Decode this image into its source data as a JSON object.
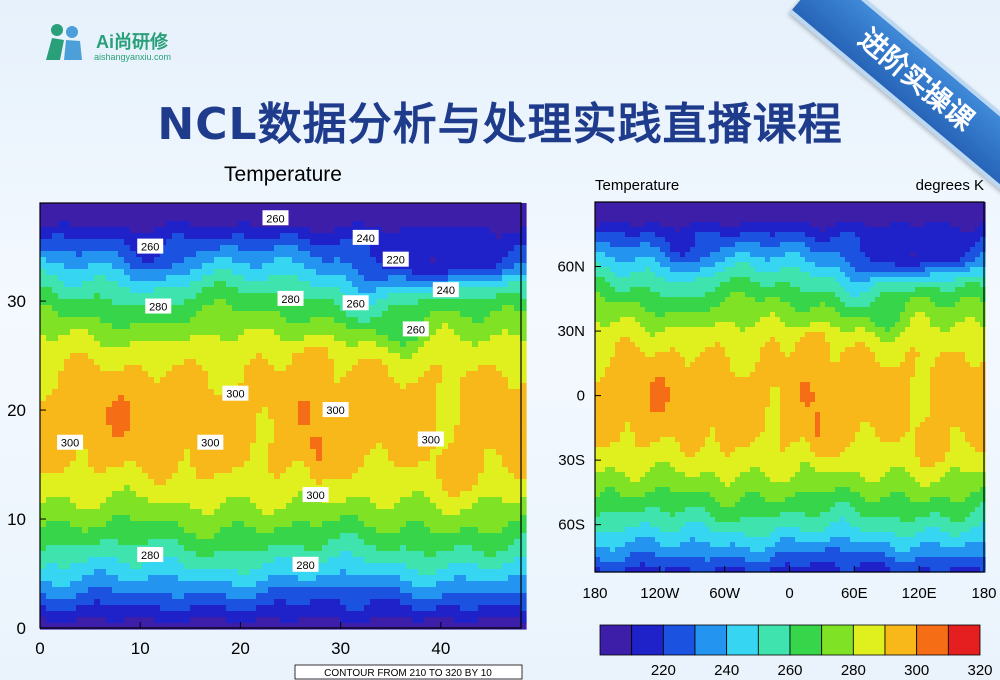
{
  "logo": {
    "name": "Ai尚研修",
    "sub": "aishangyanxiu.com"
  },
  "ribbon": "进阶实操课",
  "title": "NCL数据分析与处理实践直播课程",
  "colors": [
    "#3d1ea8",
    "#1f21c9",
    "#1b52e0",
    "#2395f0",
    "#36d6f2",
    "#3fe3ad",
    "#37d64a",
    "#7fe224",
    "#dff01e",
    "#f8b81a",
    "#f56e16",
    "#e51f1f"
  ],
  "charts": [
    {
      "id": "left",
      "type": "heatmap",
      "title": "Temperature",
      "x_ticks": [
        "0",
        "10",
        "20",
        "30",
        "40"
      ],
      "y_ticks": [
        "0",
        "10",
        "20",
        "30"
      ],
      "xlim": [
        0,
        48
      ],
      "ylim": [
        0,
        39
      ],
      "contour_note": "CONTOUR FROM 210 TO 320 BY 10",
      "contour_labels": [
        {
          "text": "260",
          "x": 23.5,
          "y": 37.6
        },
        {
          "text": "240",
          "x": 32.5,
          "y": 35.8
        },
        {
          "text": "260",
          "x": 11,
          "y": 35
        },
        {
          "text": "220",
          "x": 35.5,
          "y": 33.8
        },
        {
          "text": "240",
          "x": 40.5,
          "y": 31
        },
        {
          "text": "280",
          "x": 11.8,
          "y": 29.5
        },
        {
          "text": "280",
          "x": 25,
          "y": 30.2
        },
        {
          "text": "260",
          "x": 31.5,
          "y": 29.8
        },
        {
          "text": "260",
          "x": 37.5,
          "y": 27.4
        },
        {
          "text": "300",
          "x": 19.5,
          "y": 21.5
        },
        {
          "text": "300",
          "x": 29.5,
          "y": 20
        },
        {
          "text": "300",
          "x": 17,
          "y": 17
        },
        {
          "text": "300",
          "x": 39,
          "y": 17.3
        },
        {
          "text": "300",
          "x": 3,
          "y": 17
        },
        {
          "text": "300",
          "x": 27.5,
          "y": 12.2
        },
        {
          "text": "280",
          "x": 11,
          "y": 6.7
        },
        {
          "text": "280",
          "x": 26.5,
          "y": 5.8
        }
      ]
    },
    {
      "id": "right",
      "type": "heatmap",
      "title": "Temperature",
      "units": "degrees K",
      "x_ticks": [
        "180",
        "120W",
        "60W",
        "0",
        "60E",
        "120E",
        "180"
      ],
      "y_ticks": [
        "60S",
        "30S",
        "0",
        "30N",
        "60N"
      ],
      "xlim": [
        -180,
        180
      ],
      "ylim": [
        -82,
        90
      ],
      "colorbar": {
        "labels": [
          "220",
          "240",
          "260",
          "280",
          "300",
          "320"
        ]
      }
    }
  ]
}
